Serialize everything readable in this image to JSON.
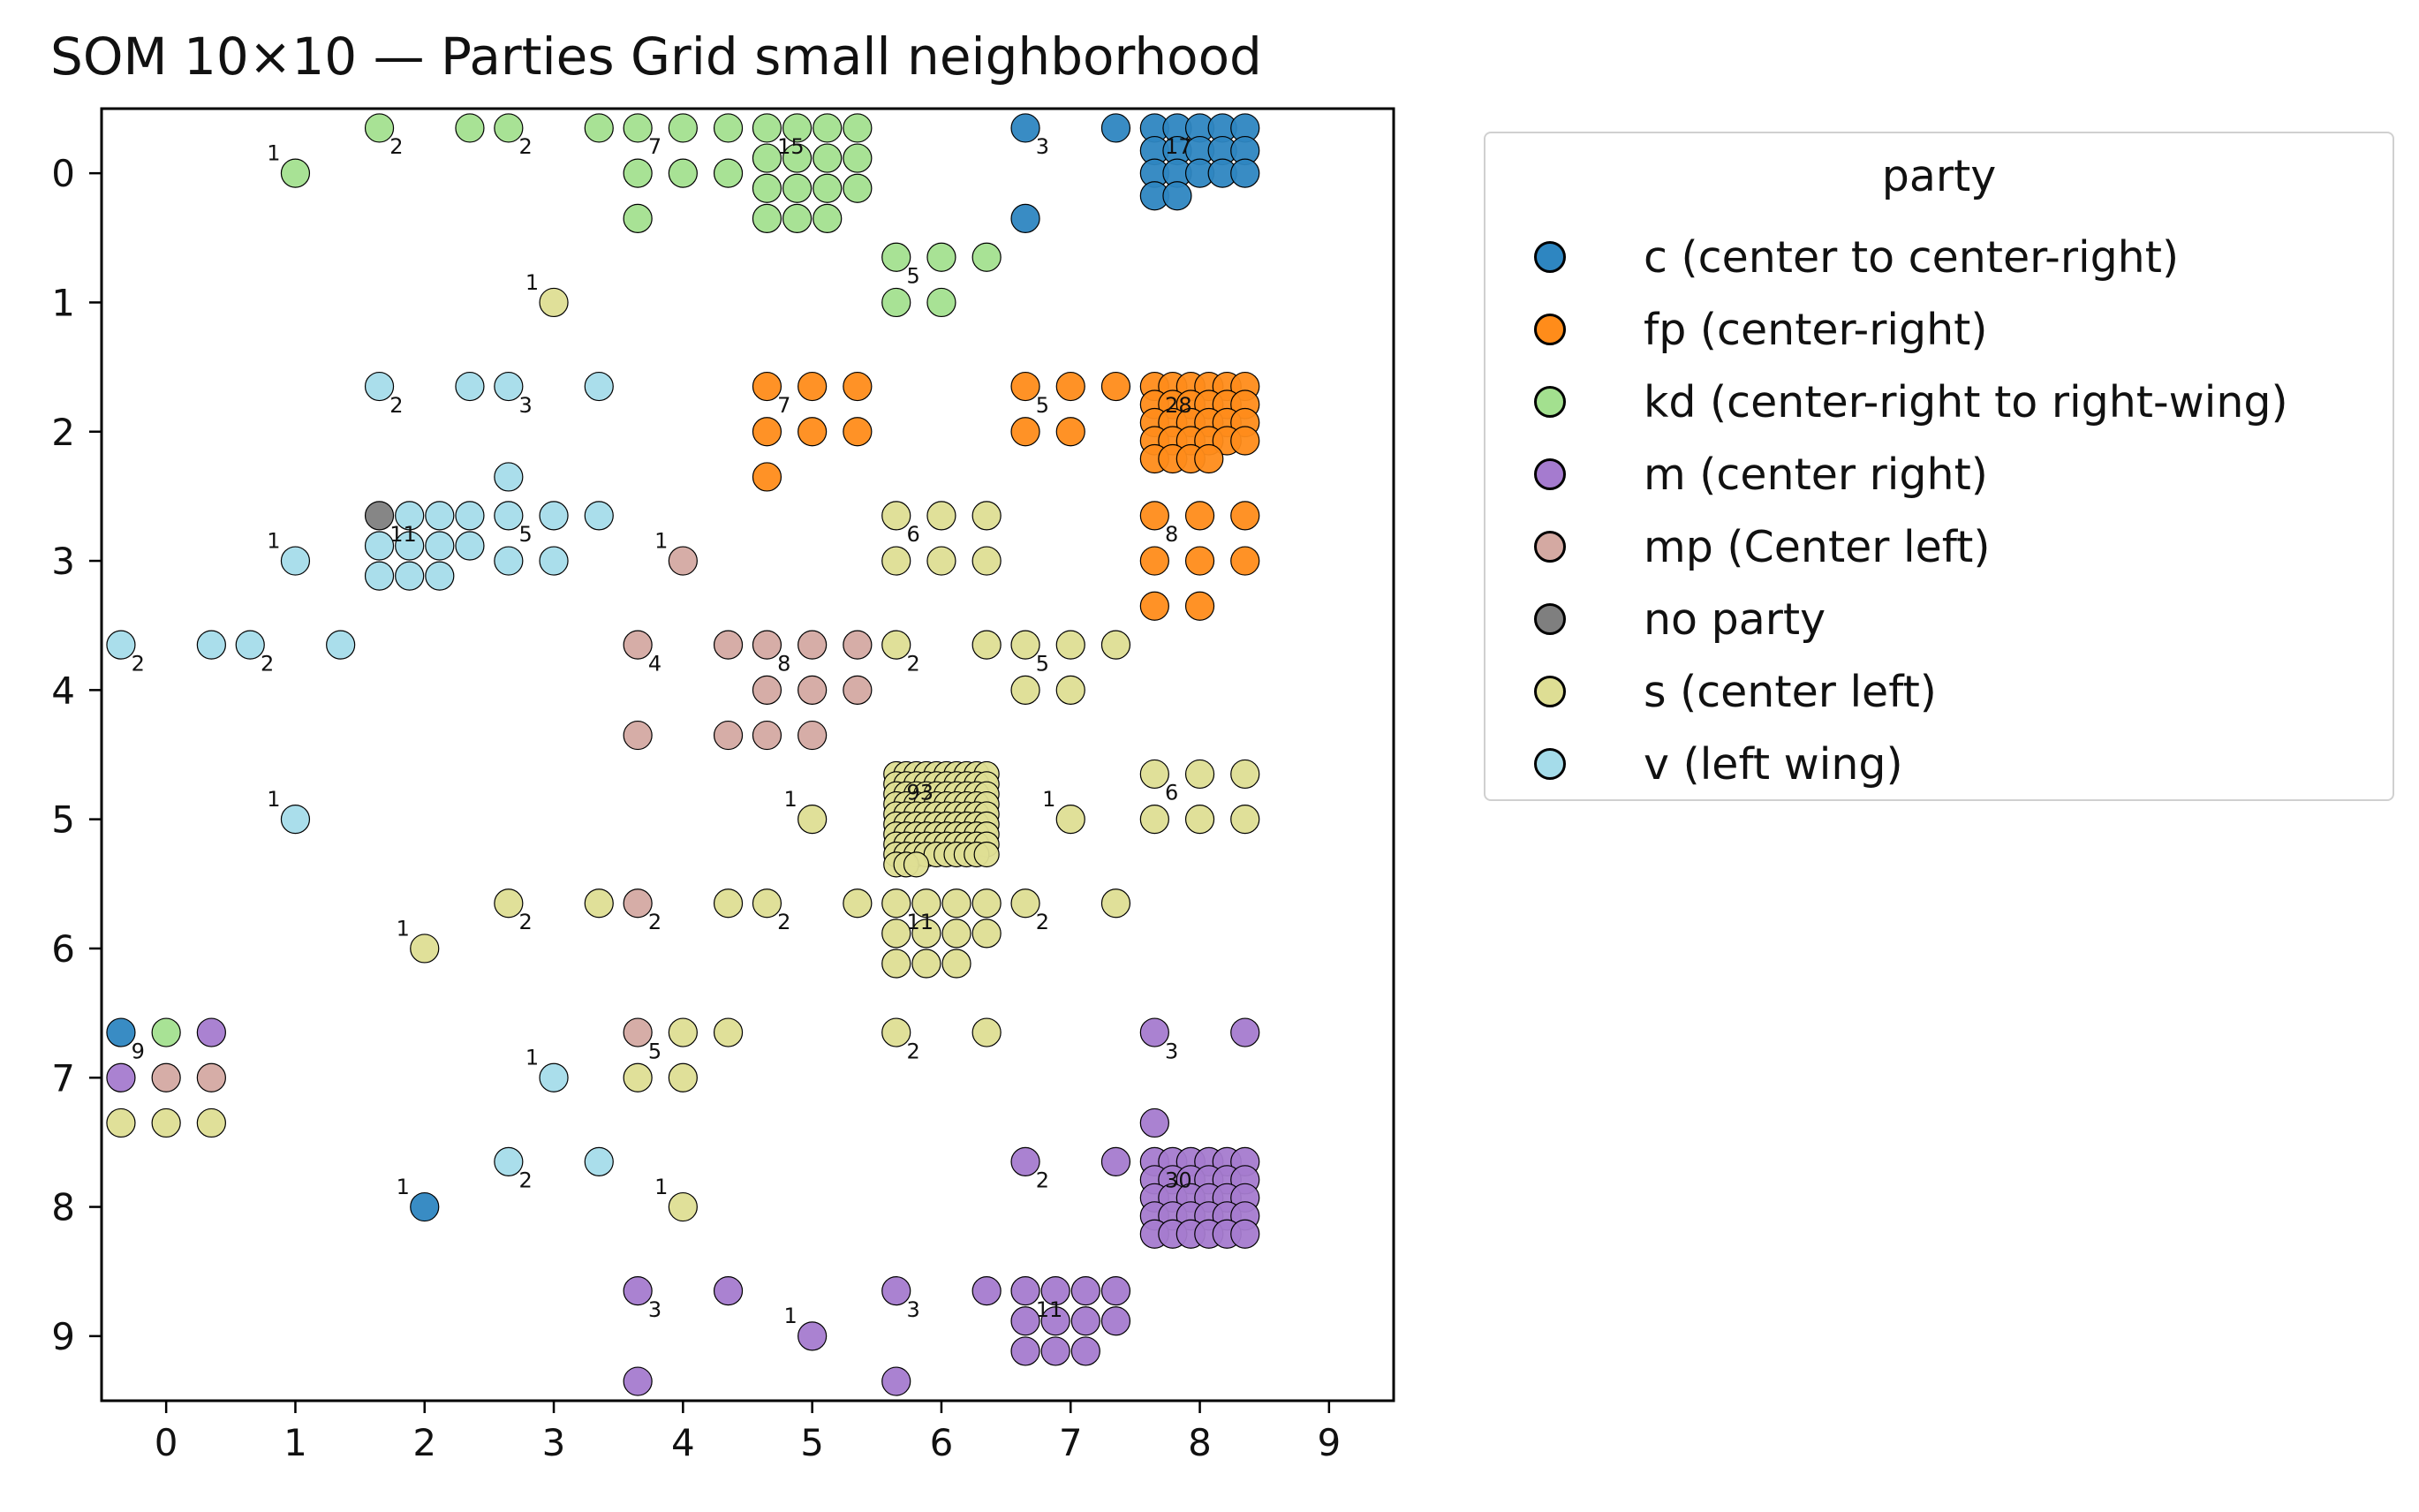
{
  "chart_data": {
    "type": "scatter",
    "title": "SOM 10×10 — Parties Grid small neighborhood",
    "xlabel": "",
    "ylabel": "",
    "xlim": [
      -0.5,
      9.5
    ],
    "ylim": [
      9.5,
      -0.5
    ],
    "y_inverted": true,
    "xticks": [
      "0",
      "1",
      "2",
      "3",
      "4",
      "5",
      "6",
      "7",
      "8",
      "9"
    ],
    "yticks": [
      "0",
      "1",
      "2",
      "3",
      "4",
      "5",
      "6",
      "7",
      "8",
      "9"
    ],
    "grid": false,
    "legend": {
      "title": "party",
      "placement": "outside-right",
      "entries": [
        {
          "key": "c",
          "label": "c (center to center-right)",
          "color": "#2e86c1"
        },
        {
          "key": "fp",
          "label": "fp (center-right)",
          "color": "#ff8c1a"
        },
        {
          "key": "kd",
          "label": "kd (center-right to right-wing)",
          "color": "#a3e08f"
        },
        {
          "key": "m",
          "label": "m (center right)",
          "color": "#a57bcf"
        },
        {
          "key": "mp",
          "label": "mp (Center left)",
          "color": "#d4a9a2"
        },
        {
          "key": "np",
          "label": "no party",
          "color": "#7f7f7f"
        },
        {
          "key": "s",
          "label": "s (center left)",
          "color": "#dede94"
        },
        {
          "key": "v",
          "label": "v (left wing)",
          "color": "#a5dcea"
        }
      ]
    },
    "cells": [
      {
        "col": 1,
        "row": 0,
        "count": 1,
        "members": {
          "kd": 1
        }
      },
      {
        "col": 2,
        "row": 0,
        "count": 2,
        "members": {
          "kd": 2
        }
      },
      {
        "col": 3,
        "row": 0,
        "count": 2,
        "members": {
          "kd": 2
        }
      },
      {
        "col": 4,
        "row": 0,
        "count": 7,
        "members": {
          "kd": 7
        }
      },
      {
        "col": 5,
        "row": 0,
        "count": 15,
        "members": {
          "kd": 15
        }
      },
      {
        "col": 7,
        "row": 0,
        "count": 3,
        "members": {
          "c": 3
        }
      },
      {
        "col": 8,
        "row": 0,
        "count": 17,
        "members": {
          "c": 17
        }
      },
      {
        "col": 3,
        "row": 1,
        "count": 1,
        "members": {
          "s": 1
        }
      },
      {
        "col": 6,
        "row": 1,
        "count": 5,
        "members": {
          "kd": 5
        }
      },
      {
        "col": 2,
        "row": 2,
        "count": 2,
        "members": {
          "v": 2
        }
      },
      {
        "col": 3,
        "row": 2,
        "count": 3,
        "members": {
          "v": 3
        }
      },
      {
        "col": 5,
        "row": 2,
        "count": 7,
        "members": {
          "fp": 7
        }
      },
      {
        "col": 7,
        "row": 2,
        "count": 5,
        "members": {
          "fp": 5
        }
      },
      {
        "col": 8,
        "row": 2,
        "count": 28,
        "members": {
          "fp": 28
        }
      },
      {
        "col": 1,
        "row": 3,
        "count": 1,
        "members": {
          "v": 1
        }
      },
      {
        "col": 2,
        "row": 3,
        "count": 11,
        "members": {
          "v": 10,
          "np": 1
        }
      },
      {
        "col": 3,
        "row": 3,
        "count": 5,
        "members": {
          "v": 5
        }
      },
      {
        "col": 4,
        "row": 3,
        "count": 1,
        "members": {
          "mp": 1
        }
      },
      {
        "col": 6,
        "row": 3,
        "count": 6,
        "members": {
          "s": 6
        }
      },
      {
        "col": 8,
        "row": 3,
        "count": 8,
        "members": {
          "fp": 8
        }
      },
      {
        "col": 0,
        "row": 4,
        "count": 2,
        "members": {
          "v": 2
        }
      },
      {
        "col": 1,
        "row": 4,
        "count": 2,
        "members": {
          "v": 2
        }
      },
      {
        "col": 4,
        "row": 4,
        "count": 4,
        "members": {
          "mp": 4
        }
      },
      {
        "col": 5,
        "row": 4,
        "count": 8,
        "members": {
          "mp": 8
        }
      },
      {
        "col": 6,
        "row": 4,
        "count": 2,
        "members": {
          "s": 2
        }
      },
      {
        "col": 7,
        "row": 4,
        "count": 5,
        "members": {
          "s": 5
        }
      },
      {
        "col": 1,
        "row": 5,
        "count": 1,
        "members": {
          "v": 1
        }
      },
      {
        "col": 5,
        "row": 5,
        "count": 1,
        "members": {
          "s": 1
        }
      },
      {
        "col": 6,
        "row": 5,
        "count": 93,
        "members": {
          "s": 93
        }
      },
      {
        "col": 7,
        "row": 5,
        "count": 1,
        "members": {
          "s": 1
        }
      },
      {
        "col": 8,
        "row": 5,
        "count": 6,
        "members": {
          "s": 6
        }
      },
      {
        "col": 2,
        "row": 6,
        "count": 1,
        "members": {
          "s": 1
        }
      },
      {
        "col": 3,
        "row": 6,
        "count": 2,
        "members": {
          "s": 2
        }
      },
      {
        "col": 4,
        "row": 6,
        "count": 2,
        "members": {
          "s": 1,
          "mp": 1
        }
      },
      {
        "col": 5,
        "row": 6,
        "count": 2,
        "members": {
          "s": 2
        }
      },
      {
        "col": 6,
        "row": 6,
        "count": 11,
        "members": {
          "s": 11
        }
      },
      {
        "col": 7,
        "row": 6,
        "count": 2,
        "members": {
          "s": 2
        }
      },
      {
        "col": 0,
        "row": 7,
        "count": 9,
        "members": {
          "m": 2,
          "s": 3,
          "mp": 2,
          "kd": 1,
          "c": 1
        }
      },
      {
        "col": 3,
        "row": 7,
        "count": 1,
        "members": {
          "v": 1
        }
      },
      {
        "col": 4,
        "row": 7,
        "count": 5,
        "members": {
          "s": 4,
          "mp": 1
        }
      },
      {
        "col": 6,
        "row": 7,
        "count": 2,
        "members": {
          "s": 2
        }
      },
      {
        "col": 8,
        "row": 7,
        "count": 3,
        "members": {
          "m": 3
        }
      },
      {
        "col": 2,
        "row": 8,
        "count": 1,
        "members": {
          "c": 1
        }
      },
      {
        "col": 3,
        "row": 8,
        "count": 2,
        "members": {
          "v": 2
        }
      },
      {
        "col": 4,
        "row": 8,
        "count": 1,
        "members": {
          "s": 1
        }
      },
      {
        "col": 7,
        "row": 8,
        "count": 2,
        "members": {
          "m": 2
        }
      },
      {
        "col": 8,
        "row": 8,
        "count": 30,
        "members": {
          "m": 30
        }
      },
      {
        "col": 4,
        "row": 9,
        "count": 3,
        "members": {
          "m": 3
        }
      },
      {
        "col": 5,
        "row": 9,
        "count": 1,
        "members": {
          "m": 1
        }
      },
      {
        "col": 6,
        "row": 9,
        "count": 3,
        "members": {
          "m": 3
        }
      },
      {
        "col": 7,
        "row": 9,
        "count": 11,
        "members": {
          "m": 11
        }
      }
    ]
  }
}
